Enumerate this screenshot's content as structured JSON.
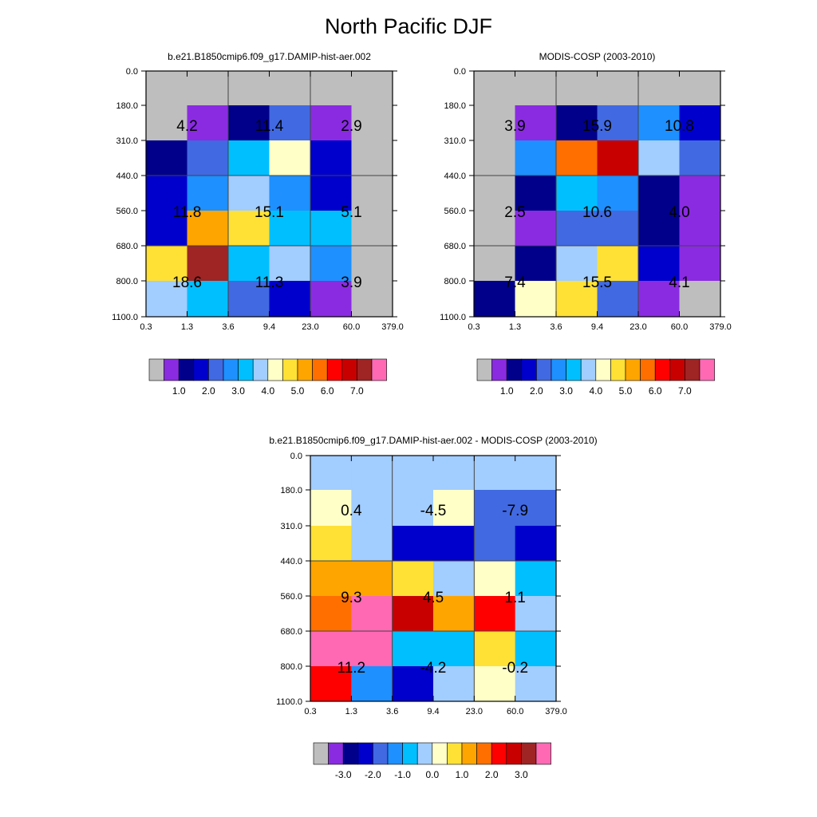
{
  "page_title": "North Pacific DJF",
  "colors": {
    "grey": "#bebebe",
    "purple": "#8a2be2",
    "navy": "#00008b",
    "mediumblue": "#0000cd",
    "royal": "#4169e1",
    "dodger": "#1e90ff",
    "deepsky": "#00bfff",
    "lightblue": "#a2cdff",
    "cream": "#ffffc8",
    "gold": "#ffe135",
    "orange": "#ffa500",
    "darkorange": "#ff6f00",
    "red": "#ff0000",
    "darkred": "#c80000",
    "brown": "#9f2424",
    "pink": "#ff69b4"
  },
  "chart_data": [
    {
      "type": "heatmap",
      "title": "b.e21.B1850cmip6.f09_g17.DAMIP-hist-aer.002",
      "x_ticks": [
        "0.3",
        "1.3",
        "3.6",
        "9.4",
        "23.0",
        "60.0",
        "379.0"
      ],
      "y_ticks": [
        "0.0",
        "180.0",
        "310.0",
        "440.0",
        "560.0",
        "680.0",
        "800.0",
        "1100.0"
      ],
      "grid": true,
      "cells": [
        [
          "grey",
          "grey",
          "grey",
          "grey",
          "grey",
          "grey"
        ],
        [
          "grey",
          "purple",
          "navy",
          "royal",
          "purple",
          "grey"
        ],
        [
          "navy",
          "royal",
          "deepsky",
          "cream",
          "mediumblue",
          "grey"
        ],
        [
          "mediumblue",
          "dodger",
          "lightblue",
          "dodger",
          "mediumblue",
          "grey"
        ],
        [
          "mediumblue",
          "orange",
          "gold",
          "deepsky",
          "deepsky",
          "grey"
        ],
        [
          "gold",
          "brown",
          "deepsky",
          "lightblue",
          "dodger",
          "grey"
        ],
        [
          "lightblue",
          "deepsky",
          "royal",
          "mediumblue",
          "purple",
          "grey"
        ]
      ],
      "labels": [
        "4.2",
        "11.4",
        "2.9",
        "11.8",
        "15.1",
        "5.1",
        "18.6",
        "11.3",
        "3.9"
      ],
      "colorbar": {
        "colors": [
          "grey",
          "purple",
          "navy",
          "mediumblue",
          "royal",
          "dodger",
          "deepsky",
          "lightblue",
          "cream",
          "gold",
          "orange",
          "darkorange",
          "red",
          "darkred",
          "brown",
          "pink"
        ],
        "labels": [
          "1.0",
          "2.0",
          "3.0",
          "4.0",
          "5.0",
          "6.0",
          "7.0"
        ]
      }
    },
    {
      "type": "heatmap",
      "title": "MODIS-COSP (2003-2010)",
      "x_ticks": [
        "0.3",
        "1.3",
        "3.6",
        "9.4",
        "23.0",
        "60.0",
        "379.0"
      ],
      "y_ticks": [
        "0.0",
        "180.0",
        "310.0",
        "440.0",
        "560.0",
        "680.0",
        "800.0",
        "1100.0"
      ],
      "grid": true,
      "cells": [
        [
          "grey",
          "grey",
          "grey",
          "grey",
          "grey",
          "grey"
        ],
        [
          "grey",
          "purple",
          "navy",
          "royal",
          "dodger",
          "mediumblue"
        ],
        [
          "grey",
          "dodger",
          "darkorange",
          "darkred",
          "lightblue",
          "royal"
        ],
        [
          "grey",
          "navy",
          "deepsky",
          "dodger",
          "navy",
          "purple"
        ],
        [
          "grey",
          "purple",
          "royal",
          "royal",
          "navy",
          "purple"
        ],
        [
          "grey",
          "navy",
          "lightblue",
          "gold",
          "mediumblue",
          "purple"
        ],
        [
          "navy",
          "cream",
          "gold",
          "royal",
          "purple",
          "grey"
        ]
      ],
      "labels": [
        "3.9",
        "15.9",
        "10.8",
        "2.5",
        "10.6",
        "4.0",
        "7.4",
        "15.5",
        "4.1"
      ],
      "colorbar": {
        "colors": [
          "grey",
          "purple",
          "navy",
          "mediumblue",
          "royal",
          "dodger",
          "deepsky",
          "lightblue",
          "cream",
          "gold",
          "orange",
          "darkorange",
          "red",
          "darkred",
          "brown",
          "pink"
        ],
        "labels": [
          "1.0",
          "2.0",
          "3.0",
          "4.0",
          "5.0",
          "6.0",
          "7.0"
        ]
      }
    },
    {
      "type": "heatmap",
      "title": "b.e21.B1850cmip6.f09_g17.DAMIP-hist-aer.002 - MODIS-COSP (2003-2010)",
      "x_ticks": [
        "0.3",
        "1.3",
        "3.6",
        "9.4",
        "23.0",
        "60.0",
        "379.0"
      ],
      "y_ticks": [
        "0.0",
        "180.0",
        "310.0",
        "440.0",
        "560.0",
        "680.0",
        "800.0",
        "1100.0"
      ],
      "grid": true,
      "cells": [
        [
          "lightblue",
          "lightblue",
          "lightblue",
          "lightblue",
          "lightblue",
          "lightblue"
        ],
        [
          "cream",
          "lightblue",
          "lightblue",
          "cream",
          "royal",
          "royal"
        ],
        [
          "gold",
          "lightblue",
          "mediumblue",
          "mediumblue",
          "royal",
          "mediumblue"
        ],
        [
          "orange",
          "orange",
          "gold",
          "lightblue",
          "cream",
          "deepsky"
        ],
        [
          "darkorange",
          "pink",
          "darkred",
          "orange",
          "red",
          "lightblue"
        ],
        [
          "pink",
          "pink",
          "deepsky",
          "deepsky",
          "gold",
          "deepsky"
        ],
        [
          "red",
          "dodger",
          "mediumblue",
          "lightblue",
          "cream",
          "lightblue"
        ]
      ],
      "labels": [
        "0.4",
        "-4.5",
        "-7.9",
        "9.3",
        "4.5",
        "1.1",
        "11.2",
        "-4.2",
        "-0.2"
      ],
      "colorbar": {
        "colors": [
          "grey",
          "purple",
          "navy",
          "mediumblue",
          "royal",
          "dodger",
          "deepsky",
          "lightblue",
          "cream",
          "gold",
          "orange",
          "darkorange",
          "red",
          "darkred",
          "brown",
          "pink"
        ],
        "labels": [
          "-3.0",
          "-2.0",
          "-1.0",
          "0.0",
          "1.0",
          "2.0",
          "3.0"
        ]
      }
    }
  ]
}
